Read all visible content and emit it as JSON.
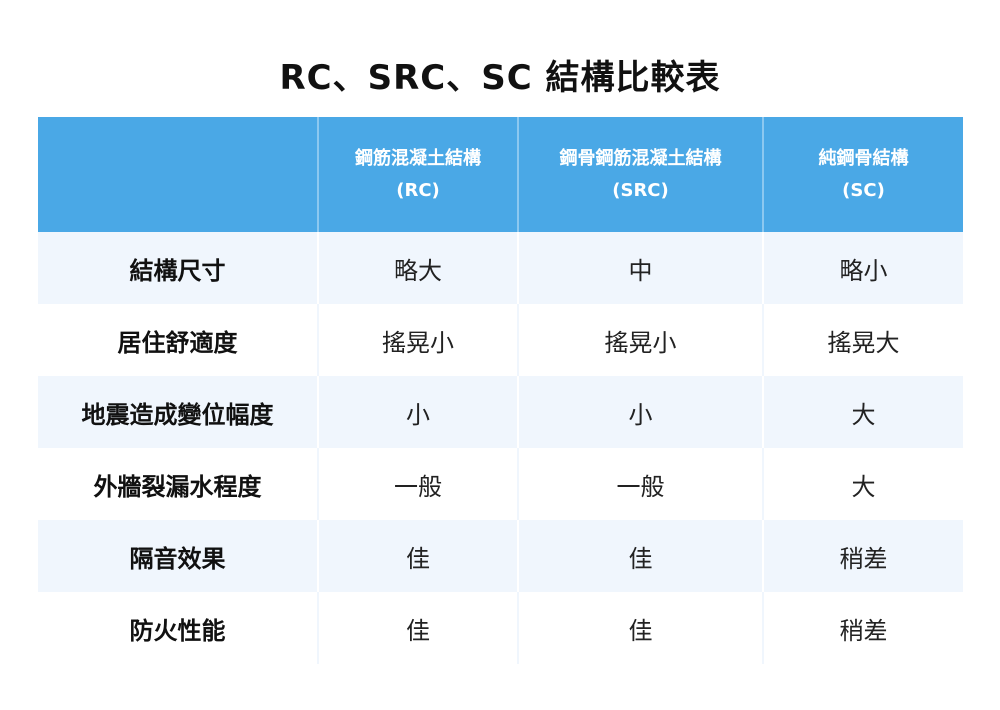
{
  "title": "RC、SRC、SC 結構比較表",
  "colors": {
    "header_bg": "#4aa8e6",
    "row_alt_bg": "#f0f6fd"
  },
  "columns": [
    {
      "name": "",
      "abbr": ""
    },
    {
      "name": "鋼筋混凝土結構",
      "abbr": "(RC)"
    },
    {
      "name": "鋼骨鋼筋混凝土結構",
      "abbr": "(SRC)"
    },
    {
      "name": "純鋼骨結構",
      "abbr": "(SC)"
    }
  ],
  "rows": [
    {
      "label": "結構尺寸",
      "values": [
        "略大",
        "中",
        "略小"
      ]
    },
    {
      "label": "居住舒適度",
      "values": [
        "搖晃小",
        "搖晃小",
        "搖晃大"
      ]
    },
    {
      "label": "地震造成變位幅度",
      "values": [
        "小",
        "小",
        "大"
      ]
    },
    {
      "label": "外牆裂漏水程度",
      "values": [
        "一般",
        "一般",
        "大"
      ]
    },
    {
      "label": "隔音效果",
      "values": [
        "佳",
        "佳",
        "稍差"
      ]
    },
    {
      "label": "防火性能",
      "values": [
        "佳",
        "佳",
        "稍差"
      ]
    }
  ]
}
